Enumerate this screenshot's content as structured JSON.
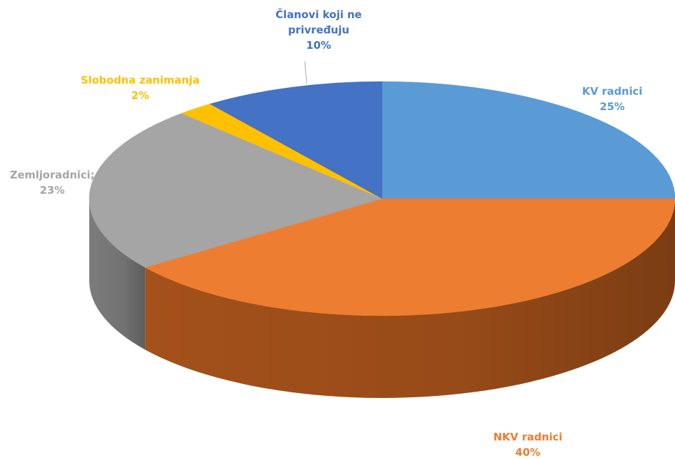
{
  "chart_data": {
    "type": "pie",
    "title": "",
    "style": "3d",
    "slices": [
      {
        "label": "KV radnici",
        "value": 25,
        "value_label": "25%",
        "color": "#5b9bd5",
        "side_color": "#3f78ad"
      },
      {
        "label": "NKV radnici",
        "value": 40,
        "value_label": "40%",
        "color": "#ed7d31",
        "side_color": "#a4511a"
      },
      {
        "label": "Zemljoradnici;",
        "value": 23,
        "value_label": "23%",
        "color": "#a5a5a5",
        "side_color": "#7c7c7c"
      },
      {
        "label": "Slobodna zanimanja",
        "value": 2,
        "value_label": "2%",
        "color": "#ffc000",
        "side_color": "#c49300"
      },
      {
        "label_lines": [
          "Članovi koji ne",
          "privređuju"
        ],
        "value": 10,
        "value_label": "10%",
        "color": "#4472c4",
        "side_color": "#2f5597"
      }
    ],
    "legend": "none"
  }
}
